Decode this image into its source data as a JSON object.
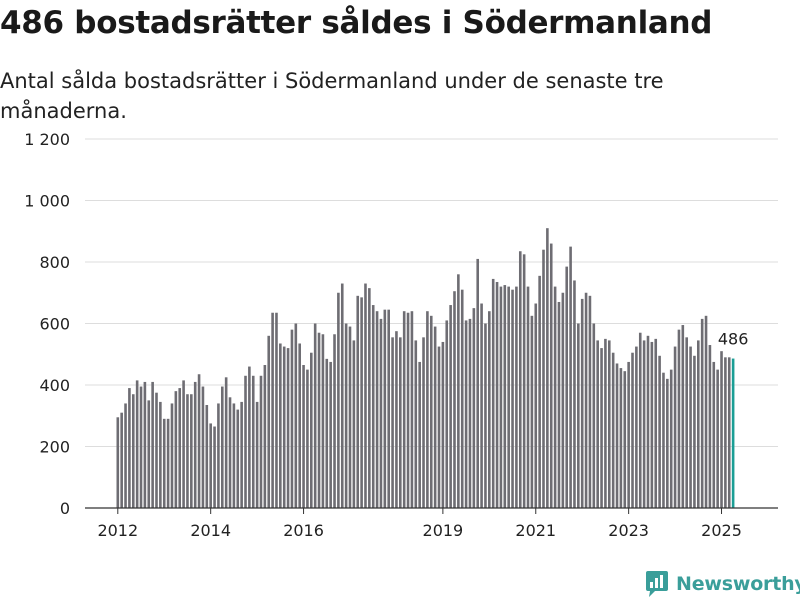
{
  "header": {
    "title": "486 bostadsrätter såldes i Södermanland",
    "subtitle": "Antal sålda bostadsrätter i Södermanland under de senaste tre månaderna."
  },
  "branding": {
    "logo_text": "Newsworthy",
    "logo_icon": "newsworthy-chart-icon"
  },
  "colors": {
    "bar": "#6e6d73",
    "highlight": "#1b9e95",
    "grid": "#dddddd",
    "axis": "#333333",
    "brand": "#3a9e9a"
  },
  "chart_data": {
    "type": "bar",
    "title": "486 bostadsrätter såldes i Södermanland",
    "subtitle": "Antal sålda bostadsrätter i Södermanland under de senaste tre månaderna.",
    "xlabel": "",
    "ylabel": "",
    "ylim": [
      0,
      1200
    ],
    "yticks": [
      0,
      200,
      400,
      600,
      800,
      1000,
      1200
    ],
    "ytick_labels": [
      "0",
      "200",
      "400",
      "600",
      "800",
      "1 000",
      "1 200"
    ],
    "xtick_labels": [
      "2012",
      "2014",
      "2016",
      "2019",
      "2021",
      "2023",
      "2025"
    ],
    "grid": true,
    "period": "rolling three-month totals, monthly, 2012–2025",
    "values": [
      295,
      310,
      340,
      390,
      370,
      415,
      395,
      410,
      350,
      410,
      375,
      345,
      290,
      290,
      340,
      380,
      390,
      415,
      370,
      370,
      410,
      435,
      395,
      335,
      275,
      265,
      340,
      395,
      425,
      360,
      340,
      320,
      345,
      430,
      460,
      430,
      345,
      430,
      465,
      560,
      635,
      635,
      535,
      525,
      520,
      580,
      600,
      535,
      465,
      450,
      505,
      600,
      570,
      565,
      485,
      475,
      565,
      700,
      730,
      600,
      590,
      545,
      690,
      685,
      730,
      715,
      660,
      640,
      615,
      645,
      645,
      555,
      575,
      555,
      640,
      635,
      640,
      545,
      475,
      555,
      640,
      625,
      590,
      525,
      540,
      610,
      660,
      705,
      760,
      710,
      610,
      615,
      650,
      810,
      665,
      600,
      640,
      745,
      735,
      720,
      725,
      720,
      710,
      720,
      835,
      825,
      720,
      625,
      665,
      755,
      840,
      910,
      860,
      720,
      670,
      700,
      785,
      850,
      740,
      600,
      680,
      700,
      690,
      600,
      545,
      520,
      550,
      545,
      505,
      470,
      455,
      445,
      475,
      505,
      525,
      570,
      545,
      560,
      540,
      550,
      495,
      440,
      420,
      450,
      525,
      580,
      595,
      555,
      525,
      495,
      545,
      615,
      625,
      530,
      475,
      450,
      510,
      490,
      490,
      486
    ],
    "highlight_last": true,
    "annotation": "486"
  }
}
